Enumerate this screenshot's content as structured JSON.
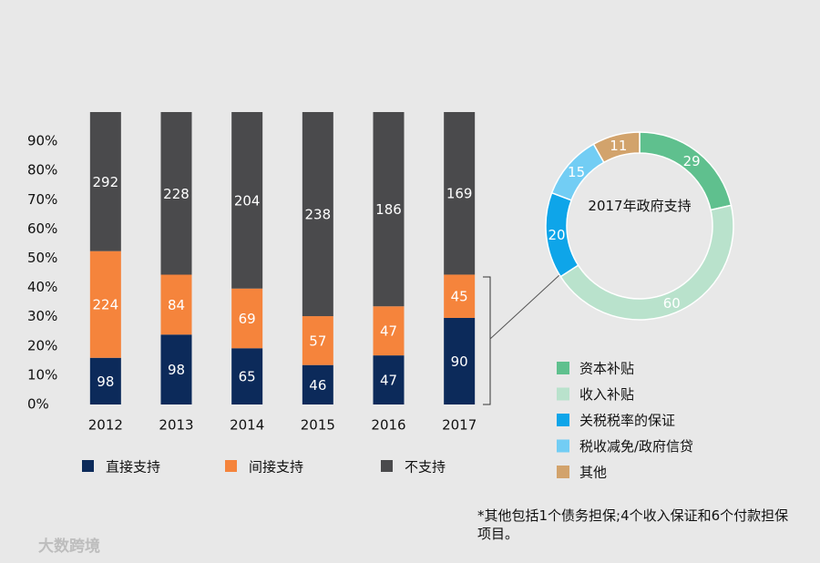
{
  "chart_data": [
    {
      "type": "bar",
      "stacking": "percent",
      "categories": [
        "2012",
        "2013",
        "2014",
        "2015",
        "2016",
        "2017"
      ],
      "series": [
        {
          "name": "直接支持",
          "color": "#0c2a5a",
          "values": [
            98,
            98,
            65,
            46,
            47,
            90
          ]
        },
        {
          "name": "间接支持",
          "color": "#f5843c",
          "values": [
            224,
            84,
            69,
            57,
            47,
            45
          ]
        },
        {
          "name": "不支持",
          "color": "#4a4a4c",
          "values": [
            292,
            228,
            204,
            238,
            186,
            169
          ]
        }
      ],
      "ylim": [
        0,
        100
      ],
      "yticks": [
        {
          "value": 0,
          "label": "0%"
        },
        {
          "value": 10,
          "label": "10%"
        },
        {
          "value": 20,
          "label": "20%"
        },
        {
          "value": 30,
          "label": "30%"
        },
        {
          "value": 40,
          "label": "40%"
        },
        {
          "value": 50,
          "label": "50%"
        },
        {
          "value": 60,
          "label": "60%"
        },
        {
          "value": 70,
          "label": "70%"
        },
        {
          "value": 80,
          "label": "80%"
        },
        {
          "value": 90,
          "label": "90%"
        }
      ],
      "grid": false
    },
    {
      "type": "donut",
      "title": "2017年政府支持",
      "categories": [
        "资本补贴",
        "收入补贴",
        "关税税率的保证",
        "税收减免/政府信贷",
        "其他"
      ],
      "values": [
        29,
        60,
        20,
        15,
        11
      ],
      "colors": [
        "#5fc08e",
        "#b9e2cc",
        "#0ea5e9",
        "#72cdf4",
        "#d2a36c"
      ]
    }
  ],
  "footnote": "*其他包括1个债务担保;4个收入保证和6个付款担保项目。",
  "watermark": "大数跨境"
}
